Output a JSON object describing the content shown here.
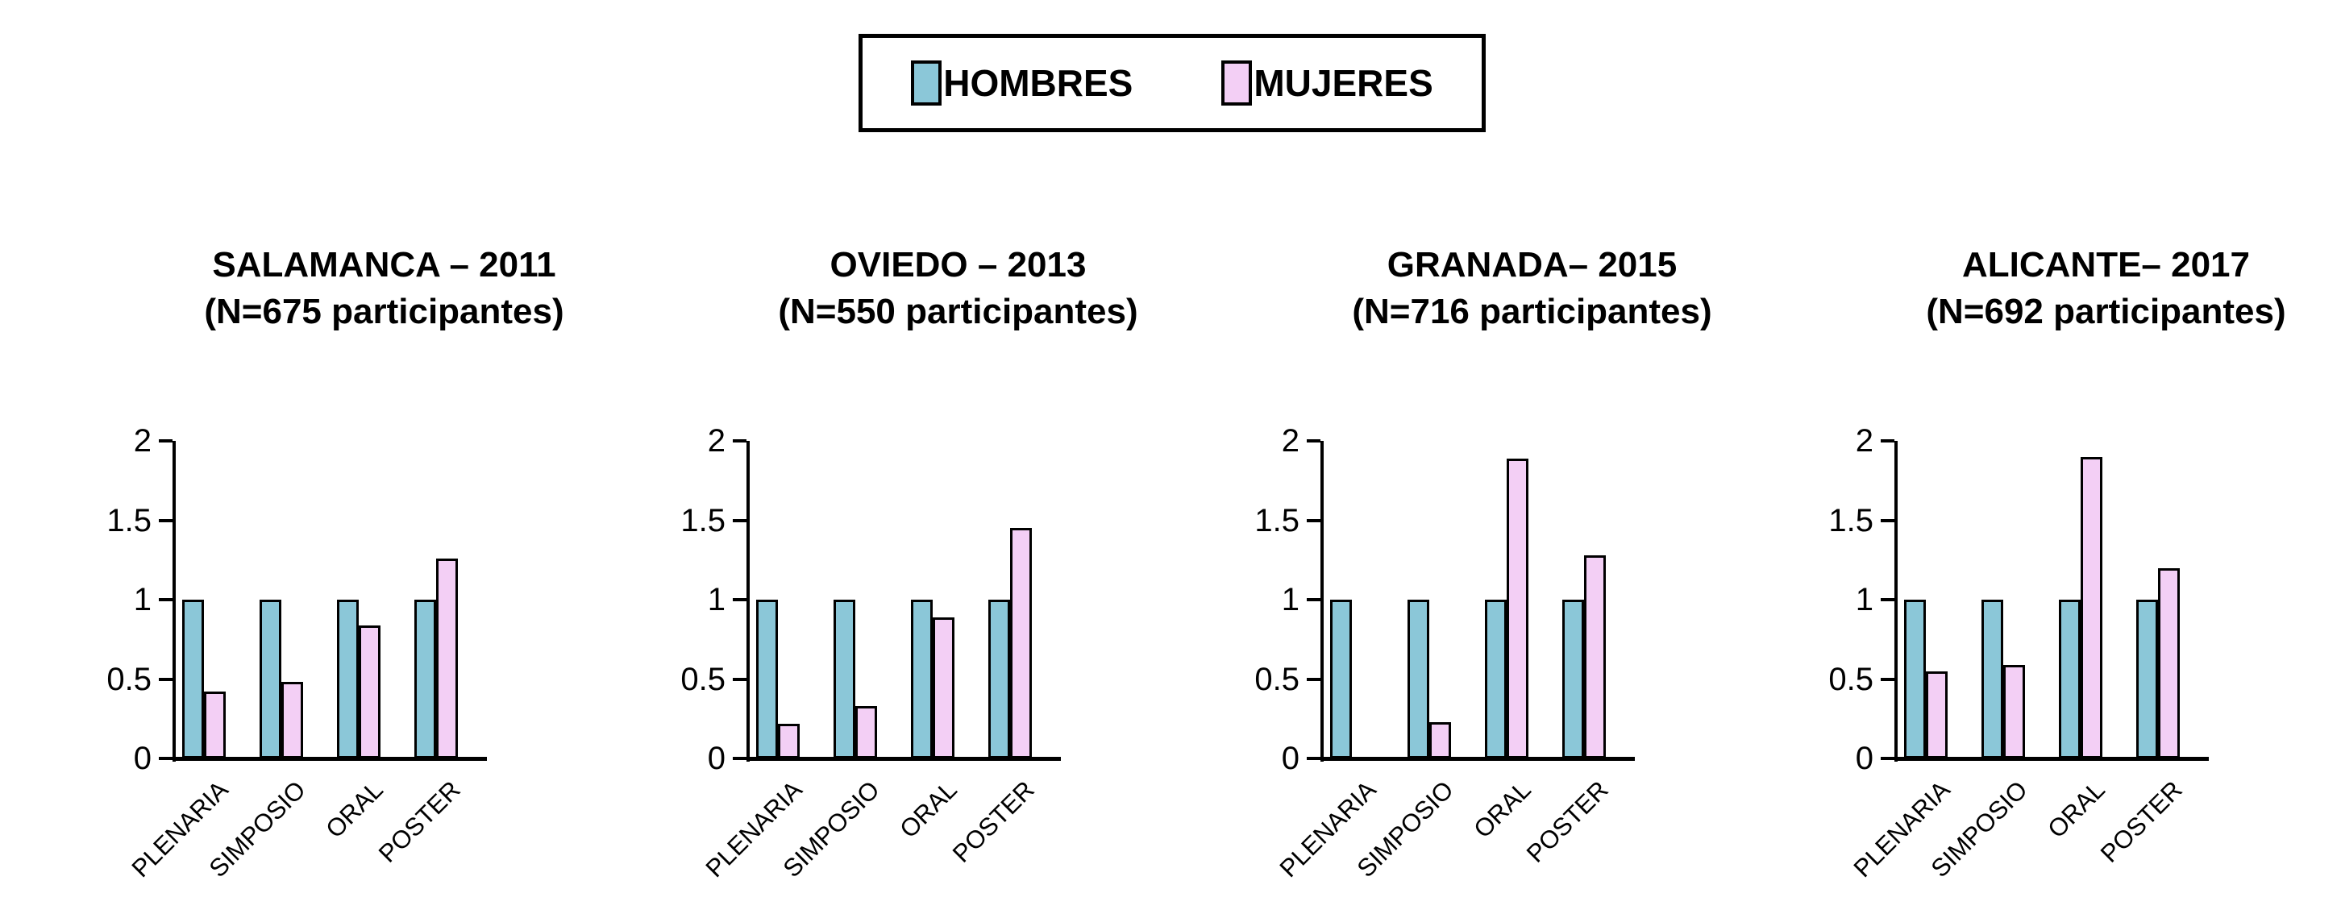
{
  "legend": {
    "items": [
      {
        "label": "HOMBRES",
        "color": "#8BC7D8"
      },
      {
        "label": "MUJERES",
        "color": "#F3CFF5"
      }
    ]
  },
  "chart_data": [
    {
      "type": "bar",
      "title": "SALAMANCA – 2011",
      "subtitle": "(N=675 participantes)",
      "categories": [
        "PLENARIA",
        "SIMPOSIO",
        "ORAL",
        "POSTER"
      ],
      "series": [
        {
          "name": "HOMBRES",
          "color": "#8BC7D8",
          "values": [
            1,
            1,
            1,
            1
          ]
        },
        {
          "name": "MUJERES",
          "color": "#F3CFF5",
          "values": [
            0.42,
            0.48,
            0.84,
            1.26
          ]
        }
      ],
      "ylim": [
        0,
        2
      ],
      "yticks": [
        "0",
        "0.5",
        "1",
        "1.5",
        "2"
      ],
      "grid": "off",
      "legend_position": "top-shared"
    },
    {
      "type": "bar",
      "title": "OVIEDO – 2013",
      "subtitle": "(N=550 participantes)",
      "categories": [
        "PLENARIA",
        "SIMPOSIO",
        "ORAL",
        "POSTER"
      ],
      "series": [
        {
          "name": "HOMBRES",
          "color": "#8BC7D8",
          "values": [
            1,
            1,
            1,
            1
          ]
        },
        {
          "name": "MUJERES",
          "color": "#F3CFF5",
          "values": [
            0.22,
            0.33,
            0.89,
            1.45
          ]
        }
      ],
      "ylim": [
        0,
        2
      ],
      "yticks": [
        "0",
        "0.5",
        "1",
        "1.5",
        "2"
      ],
      "grid": "off",
      "legend_position": "top-shared"
    },
    {
      "type": "bar",
      "title": "GRANADA– 2015",
      "subtitle": "(N=716 participantes)",
      "categories": [
        "PLENARIA",
        "SIMPOSIO",
        "ORAL",
        "POSTER"
      ],
      "series": [
        {
          "name": "HOMBRES",
          "color": "#8BC7D8",
          "values": [
            1,
            1,
            1,
            1
          ]
        },
        {
          "name": "MUJERES",
          "color": "#F3CFF5",
          "values": [
            0,
            0.23,
            1.89,
            1.28
          ]
        }
      ],
      "ylim": [
        0,
        2
      ],
      "yticks": [
        "0",
        "0.5",
        "1",
        "1.5",
        "2"
      ],
      "grid": "off",
      "legend_position": "top-shared"
    },
    {
      "type": "bar",
      "title": "ALICANTE– 2017",
      "subtitle": "(N=692 participantes)",
      "categories": [
        "PLENARIA",
        "SIMPOSIO",
        "ORAL",
        "POSTER"
      ],
      "series": [
        {
          "name": "HOMBRES",
          "color": "#8BC7D8",
          "values": [
            1,
            1,
            1,
            1
          ]
        },
        {
          "name": "MUJERES",
          "color": "#F3CFF5",
          "values": [
            0.55,
            0.59,
            1.9,
            1.2
          ]
        }
      ],
      "ylim": [
        0,
        2
      ],
      "yticks": [
        "0",
        "0.5",
        "1",
        "1.5",
        "2"
      ],
      "grid": "off",
      "legend_position": "top-shared"
    }
  ]
}
